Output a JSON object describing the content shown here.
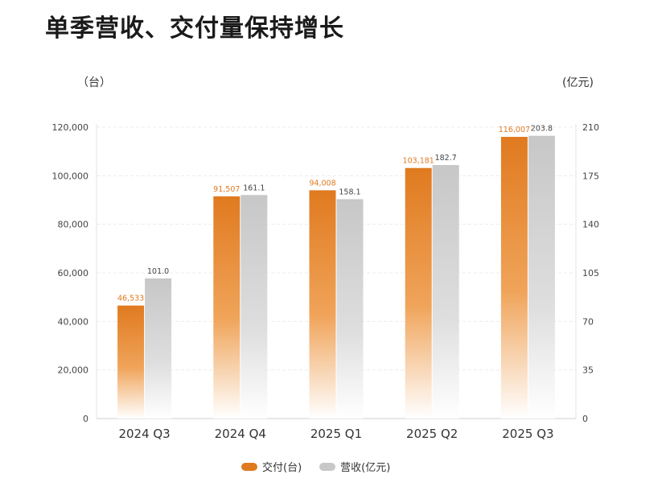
{
  "title": "单季营收、交付量保持增长",
  "left_unit": "（台）",
  "right_unit": "(亿元)",
  "colors": {
    "deliveries": "#e07a1f",
    "revenue": "#c8c8c8",
    "label_deliveries": "#e07a1f",
    "label_revenue": "#444444"
  },
  "legend": {
    "deliveries": "交付(台)",
    "revenue": "营收(亿元)"
  },
  "chart_data": {
    "type": "bar",
    "categories": [
      "2024 Q3",
      "2024 Q4",
      "2025 Q1",
      "2025 Q2",
      "2025 Q3"
    ],
    "series": [
      {
        "name": "交付(台)",
        "axis": "left",
        "values": [
          46533,
          91507,
          94008,
          103181,
          116007
        ],
        "labels": [
          "46,533",
          "91,507",
          "94,008",
          "103,181",
          "116,007"
        ]
      },
      {
        "name": "营收(亿元)",
        "axis": "right",
        "values": [
          101.0,
          161.1,
          158.1,
          182.7,
          203.8
        ],
        "labels": [
          "101.0",
          "161.1",
          "158.1",
          "182.7",
          "203.8"
        ]
      }
    ],
    "left_axis": {
      "ylim": [
        0,
        120000
      ],
      "ticks": [
        "0",
        "20,000",
        "40,000",
        "60,000",
        "80,000",
        "100,000",
        "120,000"
      ]
    },
    "right_axis": {
      "ylim": [
        0,
        210
      ],
      "ticks": [
        "0",
        "35",
        "70",
        "105",
        "140",
        "175",
        "210"
      ]
    },
    "grid": true,
    "legend_position": "bottom-center"
  }
}
